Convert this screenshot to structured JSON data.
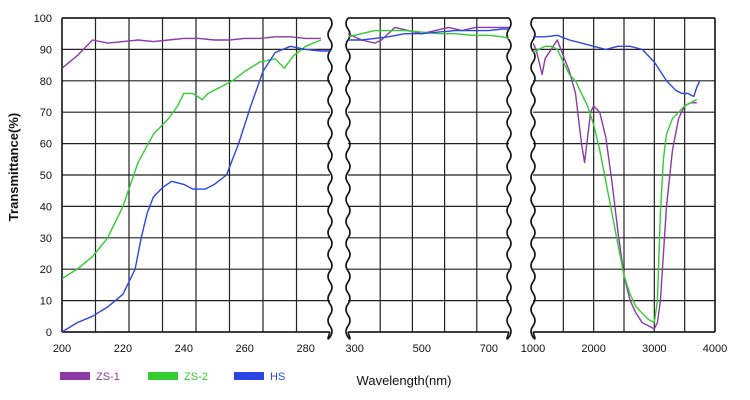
{
  "chart_data": {
    "type": "line",
    "title": "",
    "xlabel": "Wavelength(nm)",
    "ylabel": "Transmittance(%)",
    "ylim": [
      0,
      100
    ],
    "y_ticks": [
      0,
      10,
      20,
      30,
      40,
      50,
      60,
      70,
      80,
      90,
      100
    ],
    "grid": true,
    "legend_position": "bottom-left",
    "panels": [
      {
        "xlim": [
          200,
          288
        ],
        "x_ticks": [
          200,
          220,
          240,
          260,
          280
        ],
        "series": [
          {
            "name": "ZS-1",
            "color": "#8b3aa8",
            "points": [
              [
                200,
                84
              ],
              [
                205,
                88
              ],
              [
                210,
                93
              ],
              [
                215,
                92
              ],
              [
                220,
                92.5
              ],
              [
                225,
                93
              ],
              [
                230,
                92.5
              ],
              [
                235,
                93
              ],
              [
                240,
                93.5
              ],
              [
                245,
                93.5
              ],
              [
                250,
                93
              ],
              [
                255,
                93
              ],
              [
                260,
                93.5
              ],
              [
                265,
                93.5
              ],
              [
                270,
                94
              ],
              [
                275,
                94
              ],
              [
                280,
                93.5
              ],
              [
                285,
                93.5
              ]
            ]
          },
          {
            "name": "ZS-2",
            "color": "#33cc33",
            "points": [
              [
                200,
                17
              ],
              [
                205,
                20
              ],
              [
                210,
                24
              ],
              [
                215,
                30
              ],
              [
                220,
                40
              ],
              [
                225,
                54
              ],
              [
                230,
                63
              ],
              [
                235,
                68
              ],
              [
                238,
                72
              ],
              [
                240,
                76
              ],
              [
                243,
                76
              ],
              [
                246,
                74
              ],
              [
                248,
                76
              ],
              [
                252,
                78
              ],
              [
                256,
                80
              ],
              [
                260,
                83
              ],
              [
                265,
                86
              ],
              [
                270,
                87
              ],
              [
                273,
                84
              ],
              [
                276,
                88
              ],
              [
                280,
                91
              ],
              [
                285,
                93
              ]
            ]
          },
          {
            "name": "HS",
            "color": "#2c46e6",
            "points": [
              [
                200,
                0
              ],
              [
                205,
                3
              ],
              [
                210,
                5
              ],
              [
                215,
                8
              ],
              [
                220,
                12
              ],
              [
                224,
                20
              ],
              [
                226,
                30
              ],
              [
                228,
                38
              ],
              [
                230,
                43
              ],
              [
                233,
                46
              ],
              [
                236,
                48
              ],
              [
                240,
                47
              ],
              [
                243,
                45.5
              ],
              [
                247,
                45.5
              ],
              [
                250,
                47
              ],
              [
                254,
                50
              ],
              [
                258,
                60
              ],
              [
                262,
                72
              ],
              [
                266,
                83
              ],
              [
                270,
                89
              ],
              [
                275,
                91
              ],
              [
                280,
                90
              ],
              [
                285,
                89.5
              ],
              [
                288,
                89.5
              ]
            ]
          }
        ]
      },
      {
        "xlim": [
          280,
          760
        ],
        "x_ticks": [
          300,
          500,
          700
        ],
        "series": [
          {
            "name": "ZS-1",
            "color": "#8b3aa8",
            "points": [
              [
                280,
                95
              ],
              [
                320,
                93
              ],
              [
                360,
                92
              ],
              [
                380,
                93
              ],
              [
                420,
                97
              ],
              [
                460,
                96
              ],
              [
                500,
                95
              ],
              [
                540,
                96
              ],
              [
                580,
                97
              ],
              [
                620,
                96
              ],
              [
                660,
                97
              ],
              [
                700,
                97
              ],
              [
                740,
                97
              ],
              [
                760,
                97
              ]
            ]
          },
          {
            "name": "ZS-2",
            "color": "#33cc33",
            "points": [
              [
                280,
                94
              ],
              [
                320,
                95
              ],
              [
                360,
                96
              ],
              [
                400,
                96
              ],
              [
                450,
                96
              ],
              [
                500,
                95.5
              ],
              [
                550,
                95
              ],
              [
                600,
                95
              ],
              [
                650,
                94.5
              ],
              [
                700,
                94.5
              ],
              [
                740,
                94
              ],
              [
                760,
                93.5
              ]
            ]
          },
          {
            "name": "HS",
            "color": "#2c46e6",
            "points": [
              [
                280,
                93
              ],
              [
                320,
                93
              ],
              [
                360,
                93.5
              ],
              [
                400,
                94
              ],
              [
                450,
                95
              ],
              [
                500,
                95
              ],
              [
                550,
                95.5
              ],
              [
                600,
                96
              ],
              [
                650,
                96
              ],
              [
                700,
                96
              ],
              [
                740,
                96.5
              ],
              [
                760,
                96.5
              ]
            ]
          }
        ]
      },
      {
        "xlim": [
          1000,
          4000
        ],
        "x_ticks": [
          1000,
          2000,
          3000,
          4000
        ],
        "series": [
          {
            "name": "ZS-1",
            "color": "#8b3aa8",
            "points": [
              [
                1000,
                92
              ],
              [
                1050,
                90
              ],
              [
                1100,
                86
              ],
              [
                1150,
                82
              ],
              [
                1200,
                87
              ],
              [
                1300,
                90
              ],
              [
                1400,
                93
              ],
              [
                1500,
                88
              ],
              [
                1600,
                83
              ],
              [
                1700,
                76
              ],
              [
                1750,
                68
              ],
              [
                1800,
                60
              ],
              [
                1850,
                54
              ],
              [
                1900,
                62
              ],
              [
                1950,
                70
              ],
              [
                2000,
                72
              ],
              [
                2100,
                70
              ],
              [
                2200,
                62
              ],
              [
                2300,
                48
              ],
              [
                2400,
                32
              ],
              [
                2500,
                18
              ],
              [
                2600,
                10
              ],
              [
                2700,
                6
              ],
              [
                2800,
                3
              ],
              [
                2900,
                2
              ],
              [
                3000,
                1
              ],
              [
                3050,
                3
              ],
              [
                3100,
                10
              ],
              [
                3200,
                40
              ],
              [
                3300,
                58
              ],
              [
                3400,
                68
              ],
              [
                3500,
                72
              ],
              [
                3600,
                73
              ],
              [
                3700,
                73
              ]
            ]
          },
          {
            "name": "ZS-2",
            "color": "#33cc33",
            "points": [
              [
                1000,
                89
              ],
              [
                1100,
                90
              ],
              [
                1200,
                91
              ],
              [
                1300,
                91
              ],
              [
                1400,
                90
              ],
              [
                1500,
                86
              ],
              [
                1600,
                82
              ],
              [
                1700,
                80
              ],
              [
                1800,
                76
              ],
              [
                1900,
                72
              ],
              [
                2000,
                66
              ],
              [
                2100,
                58
              ],
              [
                2200,
                48
              ],
              [
                2300,
                38
              ],
              [
                2400,
                28
              ],
              [
                2500,
                18
              ],
              [
                2600,
                12
              ],
              [
                2700,
                8
              ],
              [
                2800,
                6
              ],
              [
                2900,
                4
              ],
              [
                3000,
                3
              ],
              [
                3050,
                10
              ],
              [
                3100,
                38
              ],
              [
                3150,
                55
              ],
              [
                3200,
                63
              ],
              [
                3300,
                68
              ],
              [
                3400,
                70
              ],
              [
                3500,
                72
              ],
              [
                3600,
                73
              ],
              [
                3700,
                74
              ]
            ]
          },
          {
            "name": "HS",
            "color": "#2c46e6",
            "points": [
              [
                1000,
                94
              ],
              [
                1200,
                94
              ],
              [
                1400,
                94.5
              ],
              [
                1600,
                93
              ],
              [
                1800,
                92
              ],
              [
                2000,
                91
              ],
              [
                2200,
                90
              ],
              [
                2400,
                91
              ],
              [
                2600,
                91
              ],
              [
                2800,
                90
              ],
              [
                3000,
                86
              ],
              [
                3200,
                80
              ],
              [
                3350,
                77
              ],
              [
                3450,
                76
              ],
              [
                3550,
                76
              ],
              [
                3650,
                75
              ],
              [
                3700,
                78
              ],
              [
                3750,
                80
              ]
            ]
          }
        ]
      }
    ]
  },
  "legend": [
    {
      "label": "ZS-1",
      "color": "#8b3aa8"
    },
    {
      "label": "ZS-2",
      "color": "#33cc33"
    },
    {
      "label": "HS",
      "color": "#2c46e6"
    }
  ]
}
